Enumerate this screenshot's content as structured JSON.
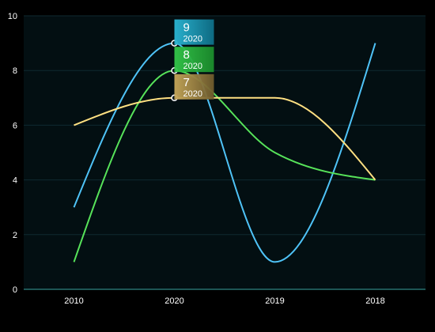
{
  "chart_data": {
    "type": "line",
    "categories": [
      "2010",
      "2020",
      "2019",
      "2018"
    ],
    "ylim": [
      0,
      10
    ],
    "y_ticks": [
      0,
      2,
      4,
      6,
      8,
      10
    ],
    "grid": true,
    "series": [
      {
        "values": [
          3,
          9,
          1,
          9
        ],
        "color": "#4fc3f7"
      },
      {
        "values": [
          1,
          8,
          5,
          4
        ],
        "color": "#57e35a"
      },
      {
        "values": [
          6,
          7,
          7,
          4
        ],
        "color": "#ffe082"
      }
    ],
    "tooltips": [
      {
        "value": "9",
        "label": "2020",
        "series_index": 0,
        "category_index": 1,
        "colors": [
          "#2bb8d6",
          "#0e6f88"
        ]
      },
      {
        "value": "8",
        "label": "2020",
        "series_index": 1,
        "category_index": 1,
        "colors": [
          "#34c94a",
          "#1b8c2c"
        ]
      },
      {
        "value": "7",
        "label": "2020",
        "series_index": 2,
        "category_index": 1,
        "colors": [
          "#c8a95a",
          "#6e5a2c"
        ]
      }
    ],
    "colors": {
      "plot_background": "#030f12",
      "grid": "#0f2a30",
      "axis": "#3aa3a0"
    }
  }
}
